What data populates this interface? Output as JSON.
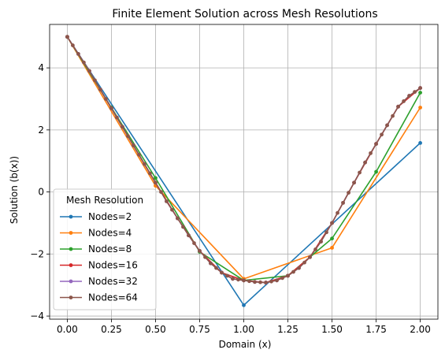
{
  "chart_data": {
    "type": "line",
    "title": "Finite Element Solution across Mesh Resolutions",
    "xlabel": "Domain (x)",
    "ylabel": "Solution (b(x))",
    "xlim": [
      -0.1,
      2.1
    ],
    "ylim": [
      -4.1,
      5.4
    ],
    "xticks": [
      "0.00",
      "0.25",
      "0.50",
      "0.75",
      "1.00",
      "1.25",
      "1.50",
      "1.75",
      "2.00"
    ],
    "yticks": [
      "−4",
      "−2",
      "0",
      "2",
      "4"
    ],
    "grid": true,
    "legend": {
      "title": "Mesh Resolution",
      "placement": "lower-left"
    },
    "series": [
      {
        "name": "Nodes=2",
        "color": "#1f77b4",
        "x": [
          0,
          1,
          2
        ],
        "y": [
          5.0,
          -3.65,
          1.58
        ]
      },
      {
        "name": "Nodes=4",
        "color": "#ff7f0e",
        "x": [
          0,
          0.5,
          1,
          1.5,
          2
        ],
        "y": [
          5.0,
          0.2,
          -2.8,
          -1.8,
          2.72
        ]
      },
      {
        "name": "Nodes=8",
        "color": "#2ca02c",
        "x": [
          0,
          0.25,
          0.5,
          0.75,
          1,
          1.25,
          1.5,
          1.75,
          2
        ],
        "y": [
          5.0,
          2.72,
          0.45,
          -1.93,
          -2.85,
          -2.7,
          -1.5,
          0.65,
          3.2
        ]
      },
      {
        "name": "Nodes=16",
        "color": "#d62728",
        "x": [],
        "y": []
      },
      {
        "name": "Nodes=32",
        "color": "#9467bd",
        "x": [],
        "y": []
      },
      {
        "name": "Nodes=64",
        "color": "#8c564b",
        "x": [],
        "y": []
      }
    ],
    "reference_curve": {
      "x": [
        0,
        0.0625,
        0.125,
        0.1875,
        0.25,
        0.3125,
        0.375,
        0.4375,
        0.5,
        0.5625,
        0.625,
        0.6875,
        0.75,
        0.8125,
        0.875,
        0.9375,
        1.0,
        1.0625,
        1.125,
        1.1875,
        1.25,
        1.3125,
        1.375,
        1.4375,
        1.5,
        1.5625,
        1.625,
        1.6875,
        1.75,
        1.8125,
        1.875,
        1.9375,
        2.0
      ],
      "y": [
        5.0,
        4.45,
        3.9,
        3.3,
        2.7,
        2.1,
        1.5,
        0.9,
        0.3,
        -0.3,
        -0.85,
        -1.4,
        -1.9,
        -2.3,
        -2.6,
        -2.8,
        -2.85,
        -2.9,
        -2.92,
        -2.85,
        -2.7,
        -2.45,
        -2.1,
        -1.6,
        -1.0,
        -0.35,
        0.3,
        0.95,
        1.55,
        2.15,
        2.75,
        3.1,
        3.35
      ]
    }
  }
}
